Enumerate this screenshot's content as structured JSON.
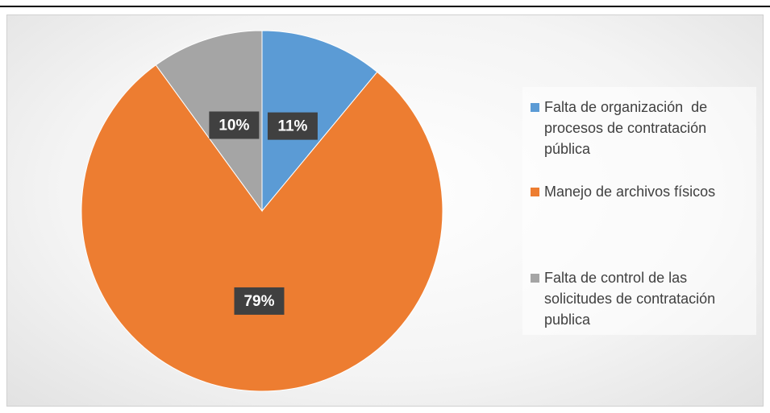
{
  "chart_data": {
    "type": "pie",
    "categories": [
      "Falta de organización  de procesos de contratación pública",
      "Manejo de archivos físicos",
      "Falta de control de las solicitudes de contratación publica"
    ],
    "values": [
      11,
      79,
      10
    ],
    "value_labels": [
      "11%",
      "79%",
      "10%"
    ],
    "colors": [
      "#5b9bd5",
      "#ed7d31",
      "#a5a5a5"
    ],
    "legend": "right"
  }
}
